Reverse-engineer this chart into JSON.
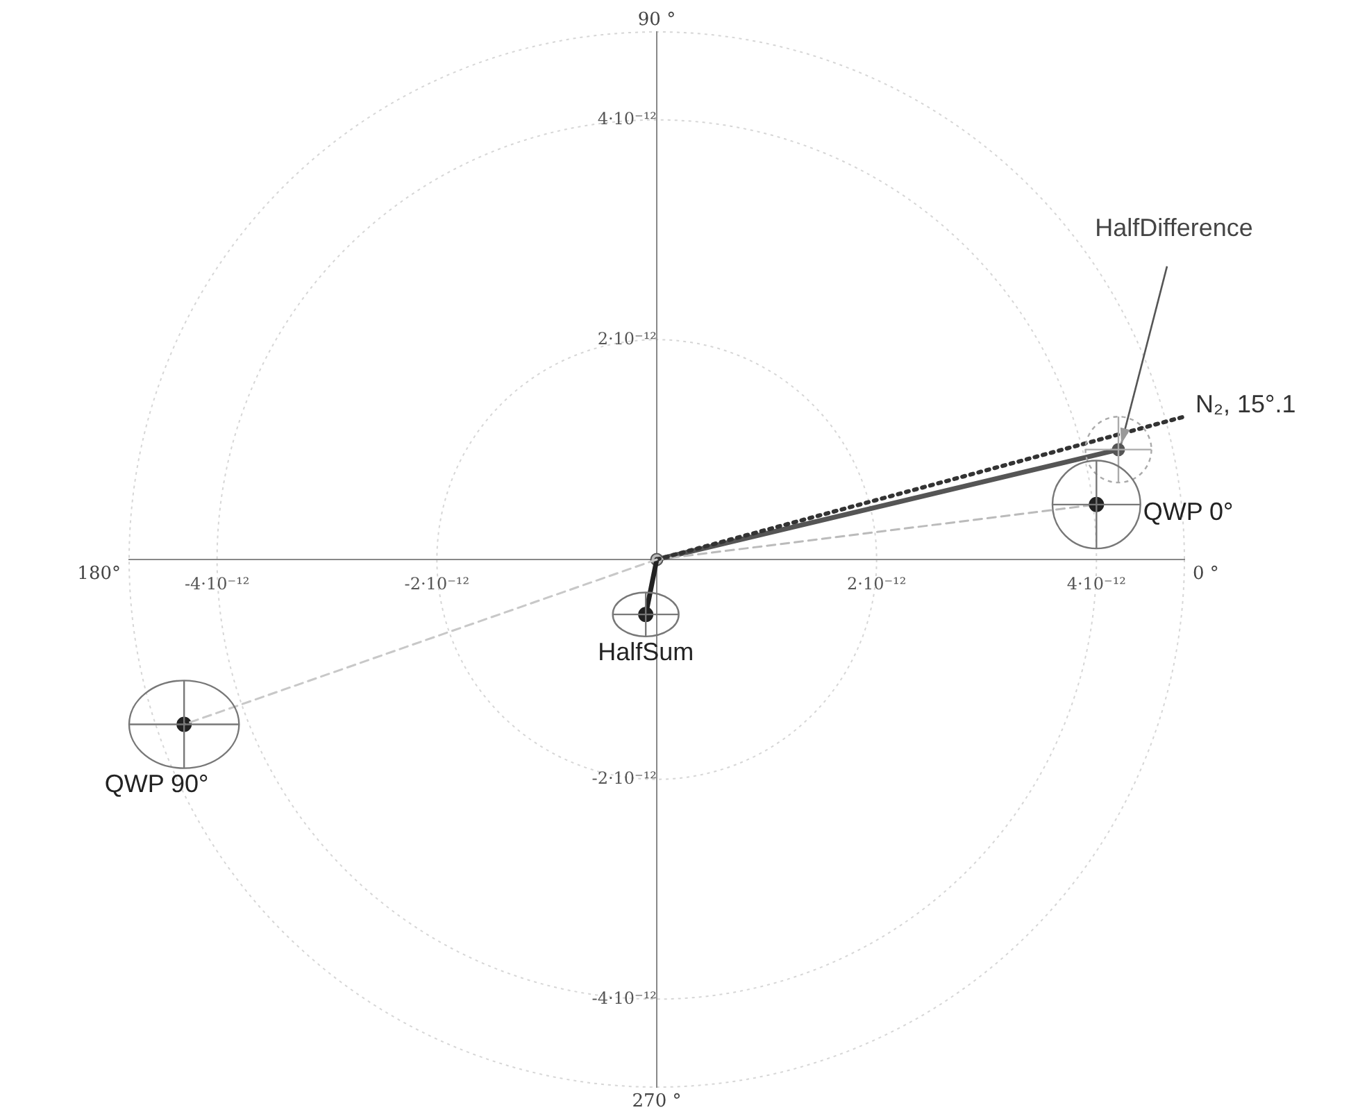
{
  "chart_data": {
    "type": "scatter",
    "xlim": [
      -4.8e-12,
      4.8e-12
    ],
    "ylim": [
      -4.8e-12,
      4.8e-12
    ],
    "xticks": [
      {
        "value": -4e-12,
        "label": "-4·10⁻¹²"
      },
      {
        "value": -2e-12,
        "label": "-2·10⁻¹²"
      },
      {
        "value": 2e-12,
        "label": "2·10⁻¹²"
      },
      {
        "value": 4e-12,
        "label": "4·10⁻¹²"
      }
    ],
    "yticks": [
      {
        "value": -4e-12,
        "label": "-4·10⁻¹²"
      },
      {
        "value": -2e-12,
        "label": "-2·10⁻¹²"
      },
      {
        "value": 2e-12,
        "label": "2·10⁻¹²"
      },
      {
        "value": 4e-12,
        "label": "4·10⁻¹²"
      }
    ],
    "legend": false,
    "series": [
      {
        "type": "line",
        "color": "#bbbbbb",
        "line_style": "dashed",
        "marker": "circle",
        "x": [
          0,
          4e-12
        ],
        "values": [
          0,
          5e-13
        ]
      },
      {
        "type": "line",
        "color": "#c8c8c8",
        "line_style": "dashed",
        "x": [
          0,
          -4.3e-12
        ],
        "values": [
          0,
          -1.5e-12
        ]
      },
      {
        "type": "line",
        "name": "N₂, 15°.1",
        "color": "#333333",
        "line_style": "dotted",
        "x": [
          0,
          4.8e-12
        ],
        "values": [
          0,
          1.3e-12
        ]
      },
      {
        "type": "line",
        "color": "#555555",
        "line_style": "solid",
        "marker": "circle",
        "x": [
          0,
          4.2e-12
        ],
        "values": [
          0,
          1e-12
        ],
        "xerrors": [
          null,
          3e-13
        ],
        "errors": [
          null,
          3e-13
        ]
      },
      {
        "type": "line",
        "color": "#222222",
        "line_style": "solid",
        "x": [
          0,
          -1e-13
        ],
        "values": [
          0,
          -5e-13
        ]
      },
      {
        "name": "QWP 0°",
        "color": "#222222",
        "marker": "circle",
        "x": [
          4e-12
        ],
        "values": [
          5e-13
        ],
        "xerrors": [
          4e-13
        ],
        "errors": [
          4e-13
        ]
      },
      {
        "name": "QWP 90°",
        "color": "#222222",
        "marker": "circle",
        "x": [
          -4.3e-12
        ],
        "values": [
          -1.5e-12
        ],
        "xerrors": [
          5e-13
        ],
        "errors": [
          4e-13
        ]
      },
      {
        "name": "HalfSum",
        "color": "#222222",
        "marker": "circle",
        "x": [
          -1e-13
        ],
        "values": [
          -5e-13
        ],
        "xerrors": [
          3e-13
        ],
        "errors": [
          2e-13
        ]
      }
    ],
    "annotations": [
      {
        "text": "HalfDifference",
        "x": 4.2e-12,
        "y": 1e-12
      },
      {
        "text": "0 °",
        "x": 4.8e-12,
        "y": 0
      },
      {
        "text": "90 °",
        "x": 0,
        "y": 4.8e-12
      },
      {
        "text": "180°",
        "x": -4.8e-12,
        "y": 0
      },
      {
        "text": "270 °",
        "x": 0,
        "y": -4.8e-12
      }
    ]
  }
}
